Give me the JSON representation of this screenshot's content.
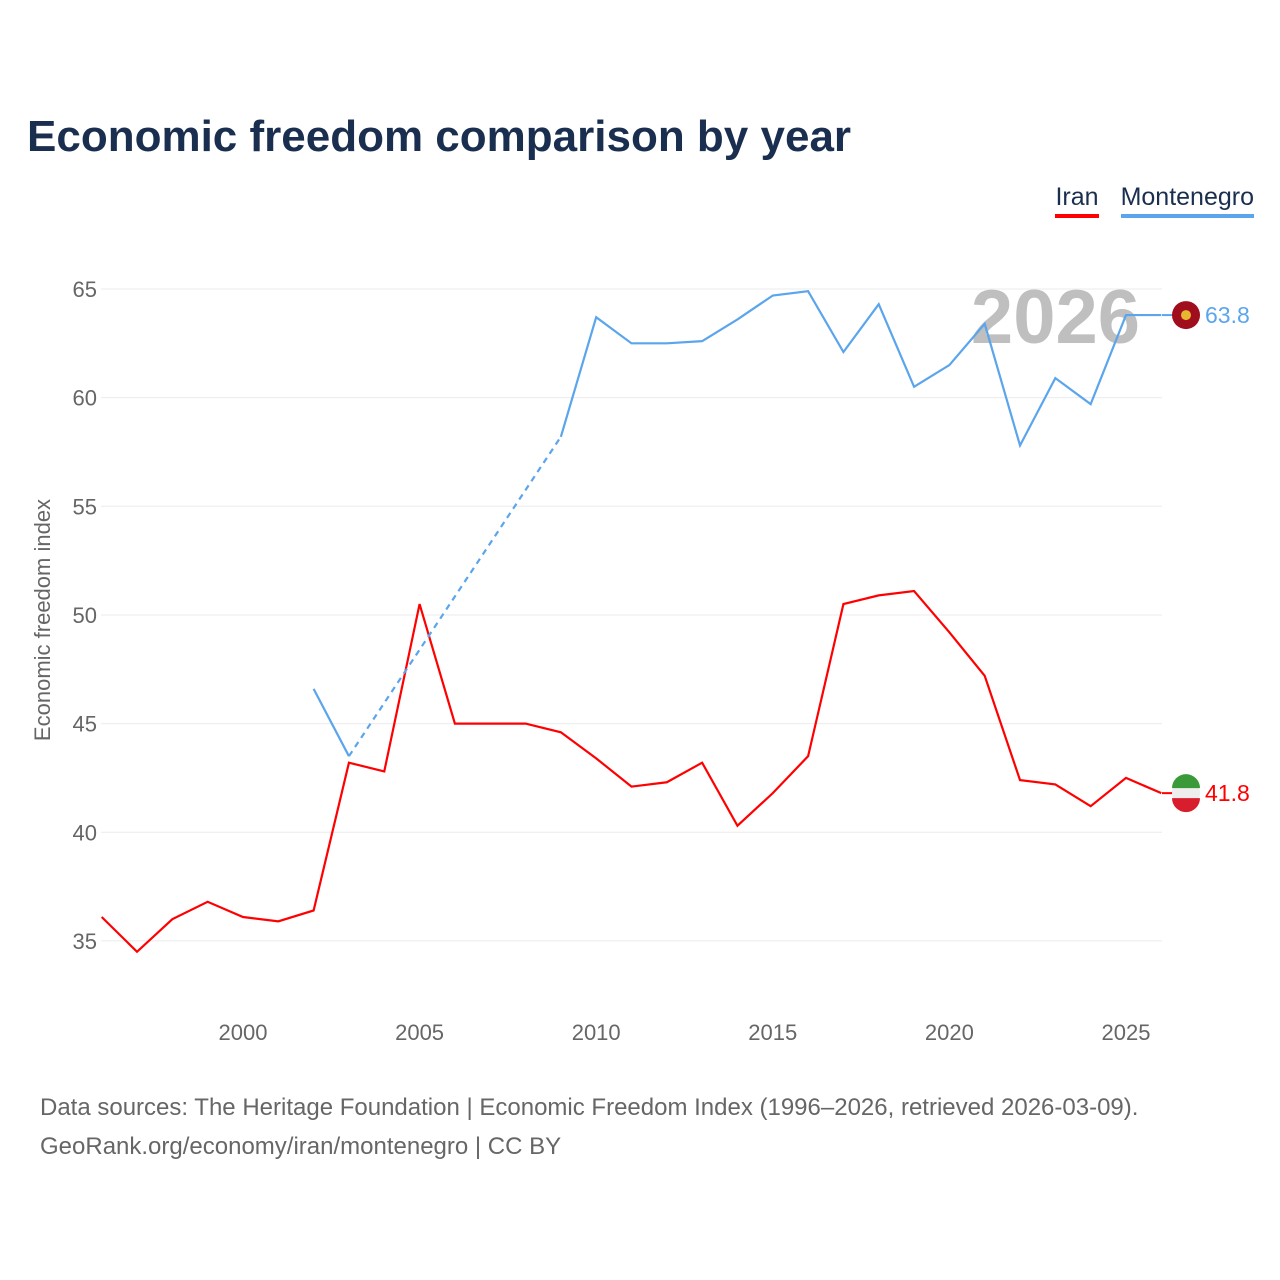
{
  "title": "Economic freedom comparison by year",
  "legend": [
    {
      "name": "Iran",
      "color": "#ff0000"
    },
    {
      "name": "Montenegro",
      "color": "#5aa5ec"
    }
  ],
  "footer": {
    "line1": "Data sources: The Heritage Foundation | Economic Freedom Index (1996–2026, retrieved 2026-03-09).",
    "line2": "GeoRank.org/economy/iran/montenegro | CC BY"
  },
  "chart_data": {
    "type": "line",
    "title": "Economic freedom comparison by year",
    "ylabel": "Economic freedom index",
    "xlabel": "",
    "year_label": "2026",
    "xlim": [
      1996,
      2026
    ],
    "ylim": [
      32,
      67
    ],
    "xticks": [
      2000,
      2005,
      2010,
      2015,
      2020,
      2025
    ],
    "yticks": [
      35,
      40,
      45,
      50,
      55,
      60,
      65
    ],
    "x": [
      1996,
      1997,
      1998,
      1999,
      2000,
      2001,
      2002,
      2003,
      2004,
      2005,
      2006,
      2007,
      2008,
      2009,
      2010,
      2011,
      2012,
      2013,
      2014,
      2015,
      2016,
      2017,
      2018,
      2019,
      2020,
      2021,
      2022,
      2023,
      2024,
      2025,
      2026
    ],
    "series": [
      {
        "name": "Iran",
        "color": "#ff0000",
        "end_label": "41.8",
        "values": [
          36.1,
          34.5,
          36.0,
          36.8,
          36.1,
          35.9,
          36.4,
          43.2,
          42.8,
          50.5,
          45.0,
          45.0,
          45.0,
          44.6,
          43.4,
          42.1,
          42.3,
          43.2,
          40.3,
          41.8,
          43.5,
          50.5,
          50.9,
          51.1,
          49.2,
          47.2,
          42.4,
          42.2,
          41.2,
          42.5,
          41.8
        ]
      },
      {
        "name": "Montenegro",
        "color": "#5aa5ec",
        "end_label": "63.8",
        "values": [
          null,
          null,
          null,
          null,
          null,
          null,
          46.6,
          43.5,
          null,
          null,
          null,
          null,
          null,
          58.2,
          63.7,
          62.5,
          62.5,
          62.6,
          63.6,
          64.7,
          64.9,
          62.1,
          64.3,
          60.5,
          61.5,
          63.4,
          57.8,
          60.9,
          59.7,
          63.8,
          63.8
        ]
      }
    ]
  }
}
